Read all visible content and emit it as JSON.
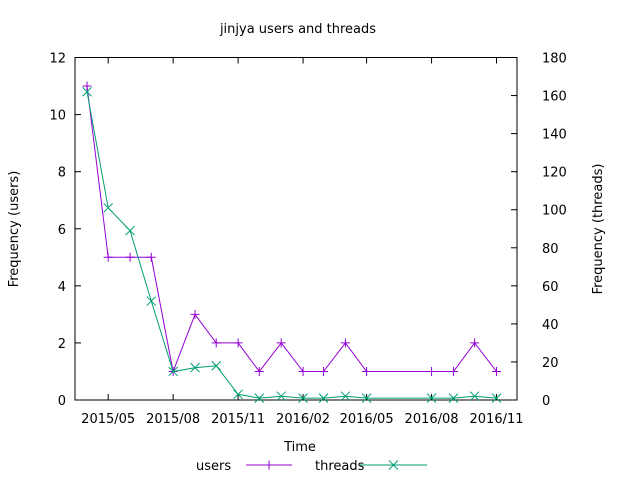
{
  "chart_data": {
    "type": "line",
    "title": "jinjya users and threads",
    "xlabel": "Time",
    "ylabel": "Frequency (users)",
    "y2label": "Frequency (threads)",
    "xlim": [
      "2015-03-15",
      "2016-11-30"
    ],
    "ylim": [
      0,
      12
    ],
    "y2lim": [
      0,
      180
    ],
    "yticks": [
      "0",
      "2",
      "4",
      "6",
      "8",
      "10",
      "12"
    ],
    "y2ticks": [
      "0",
      "20",
      "40",
      "60",
      "80",
      "100",
      "120",
      "140",
      "160",
      "180"
    ],
    "xticks": [
      {
        "date": "2015-05-01",
        "label": "2015/05"
      },
      {
        "date": "2015-08-01",
        "label": "2015/08"
      },
      {
        "date": "2015-11-01",
        "label": "2015/11"
      },
      {
        "date": "2016-02-01",
        "label": "2016/02"
      },
      {
        "date": "2016-05-01",
        "label": "2016/05"
      },
      {
        "date": "2016-08-01",
        "label": "2016/08"
      },
      {
        "date": "2016-11-01",
        "label": "2016/11"
      }
    ],
    "grid": false,
    "legend_position": "bottom",
    "series": [
      {
        "name": "users",
        "axis": "left",
        "color": "#9400d3",
        "marker": "plus",
        "points": [
          {
            "x": "2015-04-01",
            "y": 11
          },
          {
            "x": "2015-05-01",
            "y": 5
          },
          {
            "x": "2015-06-01",
            "y": 5
          },
          {
            "x": "2015-07-01",
            "y": 5
          },
          {
            "x": "2015-08-01",
            "y": 1
          },
          {
            "x": "2015-09-01",
            "y": 3
          },
          {
            "x": "2015-10-01",
            "y": 2
          },
          {
            "x": "2015-11-01",
            "y": 2
          },
          {
            "x": "2015-12-01",
            "y": 1
          },
          {
            "x": "2016-01-01",
            "y": 2
          },
          {
            "x": "2016-02-01",
            "y": 1
          },
          {
            "x": "2016-03-01",
            "y": 1
          },
          {
            "x": "2016-04-01",
            "y": 2
          },
          {
            "x": "2016-05-01",
            "y": 1
          },
          {
            "x": "2016-08-01",
            "y": 1
          },
          {
            "x": "2016-09-01",
            "y": 1
          },
          {
            "x": "2016-10-01",
            "y": 2
          },
          {
            "x": "2016-11-01",
            "y": 1
          }
        ]
      },
      {
        "name": "threads",
        "axis": "right",
        "color": "#009e73",
        "marker": "cross",
        "points": [
          {
            "x": "2015-04-01",
            "y": 162
          },
          {
            "x": "2015-05-01",
            "y": 101
          },
          {
            "x": "2015-06-01",
            "y": 89
          },
          {
            "x": "2015-07-01",
            "y": 52
          },
          {
            "x": "2015-08-01",
            "y": 15
          },
          {
            "x": "2015-09-01",
            "y": 17
          },
          {
            "x": "2015-10-01",
            "y": 18
          },
          {
            "x": "2015-11-01",
            "y": 3
          },
          {
            "x": "2015-12-01",
            "y": 1
          },
          {
            "x": "2016-01-01",
            "y": 2
          },
          {
            "x": "2016-02-01",
            "y": 1
          },
          {
            "x": "2016-03-01",
            "y": 1
          },
          {
            "x": "2016-04-01",
            "y": 2
          },
          {
            "x": "2016-05-01",
            "y": 1
          },
          {
            "x": "2016-08-01",
            "y": 1
          },
          {
            "x": "2016-09-01",
            "y": 1
          },
          {
            "x": "2016-10-01",
            "y": 2
          },
          {
            "x": "2016-11-01",
            "y": 1
          }
        ]
      }
    ]
  }
}
